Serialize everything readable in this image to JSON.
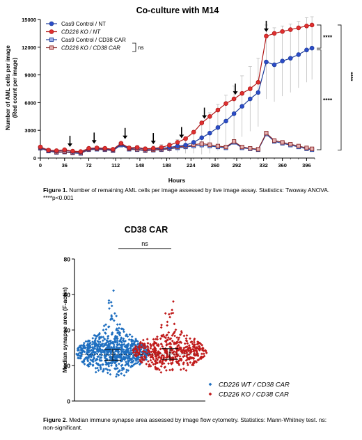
{
  "chart_data": [
    {
      "type": "line",
      "title": "Co-culture with M14",
      "xlabel": "Hours",
      "ylabel": "Number of AML cells per image",
      "ylabel_sub": "(Red count per image)",
      "xlim": [
        0,
        408
      ],
      "ylim": [
        0,
        15000
      ],
      "xticks": [
        0,
        36,
        72,
        112,
        148,
        188,
        224,
        260,
        292,
        332,
        360,
        396
      ],
      "yticks": [
        0,
        3000,
        6000,
        9000,
        12000,
        15000
      ],
      "legend_position": "top-left",
      "grid": false,
      "series": [
        {
          "name": "Cas9 Control / NT",
          "italic": false,
          "color": "#1f3f9c",
          "fill": "#2c4cc8",
          "marker": "circle",
          "x": [
            0,
            12,
            24,
            36,
            48,
            60,
            72,
            84,
            96,
            108,
            120,
            132,
            144,
            156,
            168,
            180,
            192,
            204,
            216,
            228,
            240,
            252,
            264,
            276,
            288,
            300,
            312,
            324,
            336,
            348,
            360,
            372,
            384,
            396,
            404
          ],
          "y": [
            1150,
            800,
            750,
            850,
            700,
            650,
            1000,
            1050,
            1000,
            900,
            1500,
            1050,
            1100,
            950,
            1000,
            1050,
            1150,
            1300,
            1400,
            1700,
            2200,
            2700,
            3300,
            4000,
            4800,
            5600,
            6400,
            7100,
            10400,
            10100,
            10500,
            10800,
            11200,
            11700,
            11900
          ],
          "error": [
            200,
            150,
            150,
            150,
            150,
            150,
            200,
            200,
            200,
            200,
            250,
            250,
            250,
            250,
            300,
            400,
            500,
            700,
            900,
            1200,
            1800,
            2200,
            2500,
            2800,
            3000,
            3300,
            3500,
            3700,
            4000,
            4000,
            3800,
            3700,
            3600,
            3500,
            3400
          ]
        },
        {
          "name": "CD226 KO / NT",
          "italic": true,
          "color": "#b01818",
          "fill": "#e03030",
          "marker": "circle",
          "x": [
            0,
            12,
            24,
            36,
            48,
            60,
            72,
            84,
            96,
            108,
            120,
            132,
            144,
            156,
            168,
            180,
            192,
            204,
            216,
            228,
            240,
            252,
            264,
            276,
            288,
            300,
            312,
            324,
            336,
            348,
            360,
            372,
            384,
            396,
            404
          ],
          "y": [
            1200,
            850,
            800,
            900,
            750,
            700,
            1050,
            1100,
            1050,
            950,
            1600,
            1100,
            1150,
            1000,
            1050,
            1150,
            1400,
            1700,
            2100,
            2800,
            3800,
            4500,
            5200,
            5900,
            6400,
            7000,
            7500,
            8200,
            13200,
            13500,
            13700,
            13900,
            14100,
            14300,
            14400
          ]
        },
        {
          "name": "Cas9 Control / CD38 CAR",
          "italic": false,
          "color": "#1f3f9c",
          "fill": "#9fb0e8",
          "marker": "square",
          "x": [
            0,
            12,
            24,
            36,
            48,
            60,
            72,
            84,
            96,
            108,
            120,
            132,
            144,
            156,
            168,
            180,
            192,
            204,
            216,
            228,
            240,
            252,
            264,
            276,
            288,
            300,
            312,
            324,
            336,
            348,
            360,
            372,
            384,
            396,
            404
          ],
          "y": [
            1050,
            750,
            600,
            650,
            550,
            500,
            900,
            950,
            900,
            800,
            1400,
            950,
            900,
            800,
            850,
            900,
            1000,
            1100,
            1200,
            1300,
            1400,
            1300,
            1200,
            1100,
            1700,
            1100,
            1000,
            900,
            2600,
            1800,
            1600,
            1400,
            1200,
            1000,
            900
          ]
        },
        {
          "name": "CD226 KO / CD38 CAR",
          "italic": true,
          "color": "#8a2a2a",
          "fill": "#e6b0b0",
          "marker": "square",
          "x": [
            0,
            12,
            24,
            36,
            48,
            60,
            72,
            84,
            96,
            108,
            120,
            132,
            144,
            156,
            168,
            180,
            192,
            204,
            216,
            228,
            240,
            252,
            264,
            276,
            288,
            300,
            312,
            324,
            336,
            348,
            360,
            372,
            384,
            396,
            404
          ],
          "y": [
            1100,
            800,
            650,
            700,
            600,
            550,
            950,
            1000,
            950,
            850,
            1500,
            1000,
            950,
            850,
            900,
            950,
            1050,
            1200,
            1300,
            1450,
            1550,
            1450,
            1300,
            1200,
            1800,
            1200,
            1050,
            950,
            2700,
            1900,
            1700,
            1500,
            1300,
            1100,
            1000
          ]
        }
      ],
      "arrows_x": [
        44,
        80,
        126,
        168,
        210,
        244,
        290,
        336
      ],
      "annotations": [
        {
          "label": "ns",
          "between": [
            "Cas9 Control / CD38 CAR",
            "CD226 KO / CD38 CAR"
          ]
        },
        {
          "label": "****",
          "between": [
            "Cas9 Control / NT",
            "CD226 KO / NT"
          ]
        },
        {
          "label": "****",
          "between": [
            "Cas9 Control / NT",
            "Cas9 Control / CD38 CAR"
          ]
        },
        {
          "label": "****",
          "between": [
            "CD226 KO / NT",
            "CD226 KO / CD38 CAR"
          ]
        }
      ]
    },
    {
      "type": "scatter",
      "title": "CD38 CAR",
      "ylabel": "Median synapse area (F-actin)",
      "ylim": [
        0,
        80
      ],
      "yticks": [
        0,
        20,
        40,
        60,
        80
      ],
      "legend_position": "right",
      "significance": "ns",
      "series": [
        {
          "name": "CD226 WT / CD38 CAR",
          "color": "#1f6fc0",
          "marker": "diamond",
          "median": 26,
          "n": 720
        },
        {
          "name": "CD226 KO / CD38 CAR",
          "color": "#c01a1a",
          "marker": "diamond",
          "median": 26.5,
          "n": 460
        }
      ]
    }
  ],
  "captions": {
    "fig1_label": "Figure 1.",
    "fig1_text": " Number of remaining AML cells per image assessed by live image assay. Statistics: Twoway ANOVA. ****p<0.001",
    "fig2_label": "Figure 2",
    "fig2_text": ". Median immune synapse area assessed by image flow cytometry. Statistics: Mann-Whitney test. ns: non-significant."
  }
}
